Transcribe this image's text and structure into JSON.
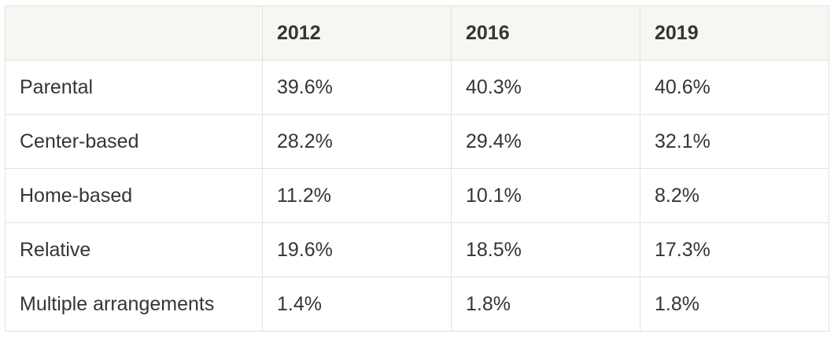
{
  "table": {
    "columns": [
      "2012",
      "2016",
      "2019"
    ],
    "rows": [
      {
        "label": "Parental",
        "cells": [
          "39.6%",
          "40.3%",
          "40.6%"
        ]
      },
      {
        "label": "Center-based",
        "cells": [
          "28.2%",
          "29.4%",
          "32.1%"
        ]
      },
      {
        "label": "Home-based",
        "cells": [
          "11.2%",
          "10.1%",
          "8.2%"
        ]
      },
      {
        "label": "Relative",
        "cells": [
          "19.6%",
          "18.5%",
          "17.3%"
        ]
      },
      {
        "label": "Multiple arrangements",
        "cells": [
          "1.4%",
          "1.8%",
          "1.8%"
        ]
      }
    ]
  }
}
